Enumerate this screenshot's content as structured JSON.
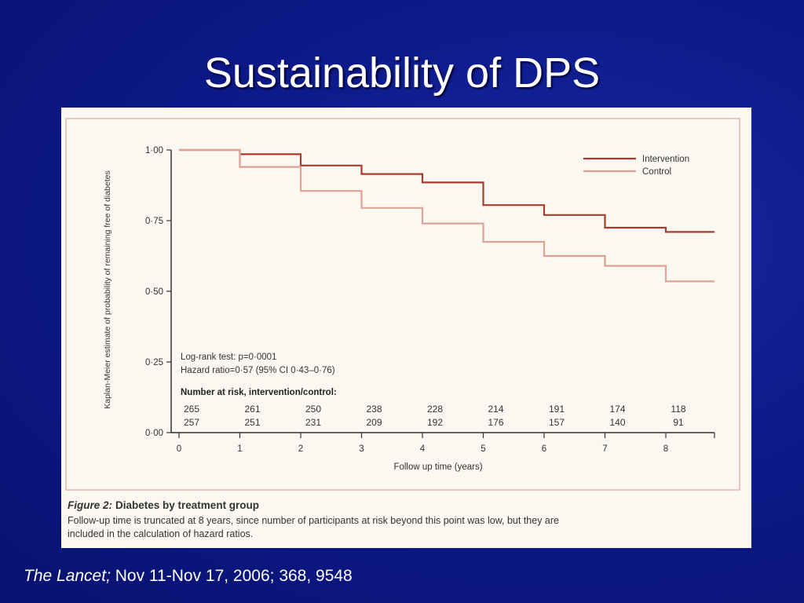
{
  "slide": {
    "title": "Sustainability of DPS",
    "citation_journal": "The Lancet;",
    "citation_details": "Nov 11-Nov 17, 2006; 368, 9548"
  },
  "figure": {
    "caption_label": "Figure 2:",
    "caption_title": "Diabetes by treatment group",
    "caption_line1": "Follow-up time is truncated at 8 years, since number of participants at risk beyond this point was low, but they are",
    "caption_line2": "included in the calculation of hazard ratios.",
    "stats_line1": "Log-rank test: p=0·0001",
    "stats_line2": "Hazard ratio=0·57 (95% CI 0·43–0·76)",
    "risk_header": "Number at risk, intervention/control:"
  },
  "chart_data": {
    "type": "line",
    "step": true,
    "xlabel": "Follow up time (years)",
    "ylabel": "Kaplan-Meier estimate of probability of remaining free of diabetes",
    "xlim": [
      0,
      8.8
    ],
    "ylim": [
      0,
      1
    ],
    "x_ticks": [
      0,
      1,
      2,
      3,
      4,
      5,
      6,
      7,
      8
    ],
    "y_ticks": [
      0,
      0.25,
      0.5,
      0.75,
      1
    ],
    "y_tick_labels": [
      "0·00",
      "0·25",
      "0·50",
      "0·75",
      "1·00"
    ],
    "legend_position": "top-right",
    "series": [
      {
        "name": "Intervention",
        "color": "#a83a2e",
        "x": [
          0,
          1,
          2,
          3,
          4,
          5,
          6,
          7,
          8,
          8.8
        ],
        "y": [
          1.0,
          0.985,
          0.945,
          0.915,
          0.885,
          0.805,
          0.77,
          0.725,
          0.71,
          0.71
        ]
      },
      {
        "name": "Control",
        "color": "#dca293",
        "x": [
          0,
          1,
          2,
          3,
          4,
          5,
          6,
          7,
          8,
          8.8
        ],
        "y": [
          1.0,
          0.94,
          0.855,
          0.795,
          0.74,
          0.675,
          0.625,
          0.59,
          0.535,
          0.535
        ]
      }
    ],
    "number_at_risk": {
      "intervention": [
        265,
        261,
        250,
        238,
        228,
        214,
        191,
        174,
        118
      ],
      "control": [
        257,
        251,
        231,
        209,
        192,
        176,
        157,
        140,
        91
      ]
    }
  }
}
